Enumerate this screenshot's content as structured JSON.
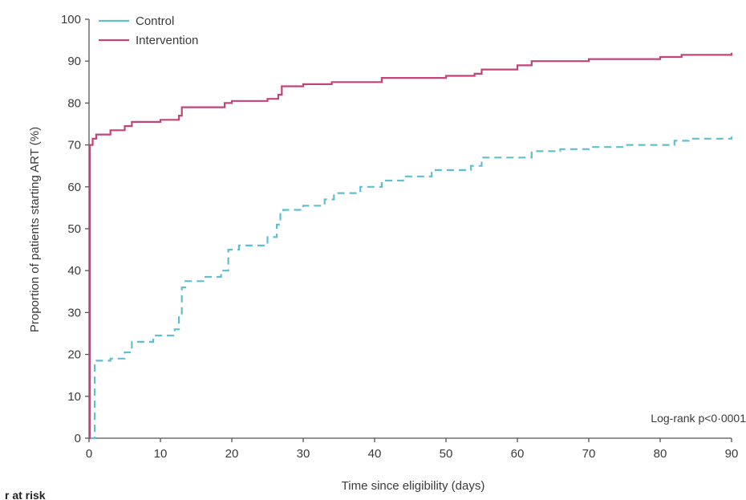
{
  "chart_data": {
    "type": "line",
    "title": "",
    "xlabel": "Time since eligibility (days)",
    "ylabel": "Proportion of patients starting ART (%)",
    "xlim": [
      0,
      90
    ],
    "ylim": [
      0,
      100
    ],
    "x_ticks": [
      "0",
      "10",
      "20",
      "30",
      "40",
      "50",
      "60",
      "70",
      "80",
      "90"
    ],
    "y_ticks": [
      "0",
      "10",
      "20",
      "30",
      "40",
      "50",
      "60",
      "70",
      "80",
      "90",
      "100"
    ],
    "grid": false,
    "legend_position": "top-left",
    "annotation": "Log-rank p<0·0001",
    "footer_text": "r at risk",
    "series": [
      {
        "name": "Control",
        "color": "#5fbfcf",
        "style": "dashed",
        "step": true,
        "x": [
          0,
          0.5,
          0.8,
          3,
          5,
          6,
          9,
          12,
          12.6,
          13,
          13.5,
          16,
          18.5,
          19.5,
          21,
          25,
          26.3,
          26.8,
          27.2,
          30,
          33,
          34.3,
          38,
          41,
          44,
          48,
          53.5,
          55,
          62,
          66,
          70,
          75,
          82,
          84,
          90
        ],
        "y": [
          0,
          0,
          18.5,
          19,
          20.5,
          23,
          24.5,
          26,
          29.5,
          36,
          37.5,
          38.5,
          40,
          45,
          46,
          48,
          51,
          53.5,
          54.5,
          55.5,
          57,
          58.5,
          60,
          61.5,
          62.5,
          64,
          65,
          67,
          68.5,
          69,
          69.5,
          70,
          71,
          71.5,
          72
        ]
      },
      {
        "name": "Intervention",
        "color": "#c24478",
        "style": "solid",
        "step": true,
        "x": [
          0,
          0.1,
          0.5,
          1,
          3,
          5,
          6,
          10,
          12.6,
          13,
          19,
          20,
          25,
          26.5,
          27,
          30,
          34,
          41,
          50,
          54,
          55,
          60,
          62,
          70,
          80,
          83,
          90
        ],
        "y": [
          0,
          70,
          71.5,
          72.5,
          73.5,
          74.5,
          75.5,
          76,
          77,
          79,
          80,
          80.5,
          81,
          82,
          84,
          84.5,
          85,
          86,
          86.5,
          87,
          88,
          89,
          90,
          90.5,
          91,
          91.5,
          92
        ]
      }
    ]
  }
}
